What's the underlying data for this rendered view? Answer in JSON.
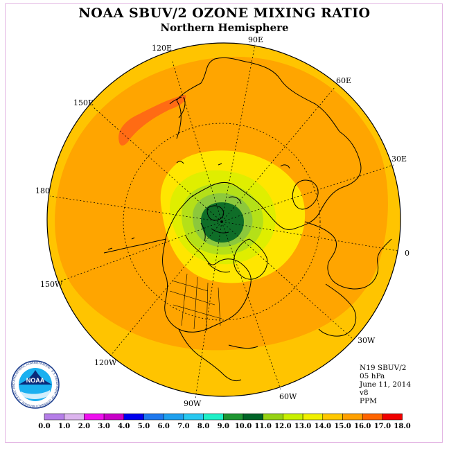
{
  "title": "NOAA SBUV/2 OZONE MIXING RATIO",
  "subtitle": "Northern Hemisphere",
  "longitude_labels": {
    "l90e": "90E",
    "l120e": "120E",
    "l60e": "60E",
    "l150e": "150E",
    "l30e": "30E",
    "l180": "180",
    "l0": "0",
    "l150w": "150W",
    "l30w": "30W",
    "l120w": "120W",
    "l60w": "60W",
    "l90w": "90W"
  },
  "info": {
    "satellite": "N19 SBUV/2",
    "pressure": "05 hPa",
    "date": "June 11, 2014",
    "version": "v8",
    "units": "PPM"
  },
  "logo": {
    "text": "NOAA",
    "ring_text": "NATIONAL OCEANIC AND ATMOSPHERIC ADMINISTRATION · U.S. DEPARTMENT OF COMMERCE"
  },
  "colorbar": {
    "labels": [
      "0.0",
      "1.0",
      "2.0",
      "3.0",
      "4.0",
      "5.0",
      "6.0",
      "7.0",
      "8.0",
      "9.0",
      "10.0",
      "11.0",
      "12.0",
      "13.0",
      "14.0",
      "15.0",
      "16.0",
      "17.0",
      "18.0"
    ],
    "colors": [
      "#b57ee8",
      "#dcb4ee",
      "#ee10ee",
      "#c800c8",
      "#0000ee",
      "#1e78ee",
      "#1ea0ee",
      "#28c8f0",
      "#1ef0c8",
      "#1e9632",
      "#006428",
      "#96d214",
      "#c8f000",
      "#f0f000",
      "#ffc800",
      "#ffa000",
      "#ff6400",
      "#f00000",
      "#a0522d"
    ]
  },
  "map_colors": {
    "outer": "#ffc400",
    "band15": "#ffa500",
    "band16": "#ff6b14",
    "band13": "#ffe600",
    "band12": "#dfee00",
    "band11": "#b4e018",
    "band10": "#8cc83c",
    "band9": "#0f6e28"
  }
}
